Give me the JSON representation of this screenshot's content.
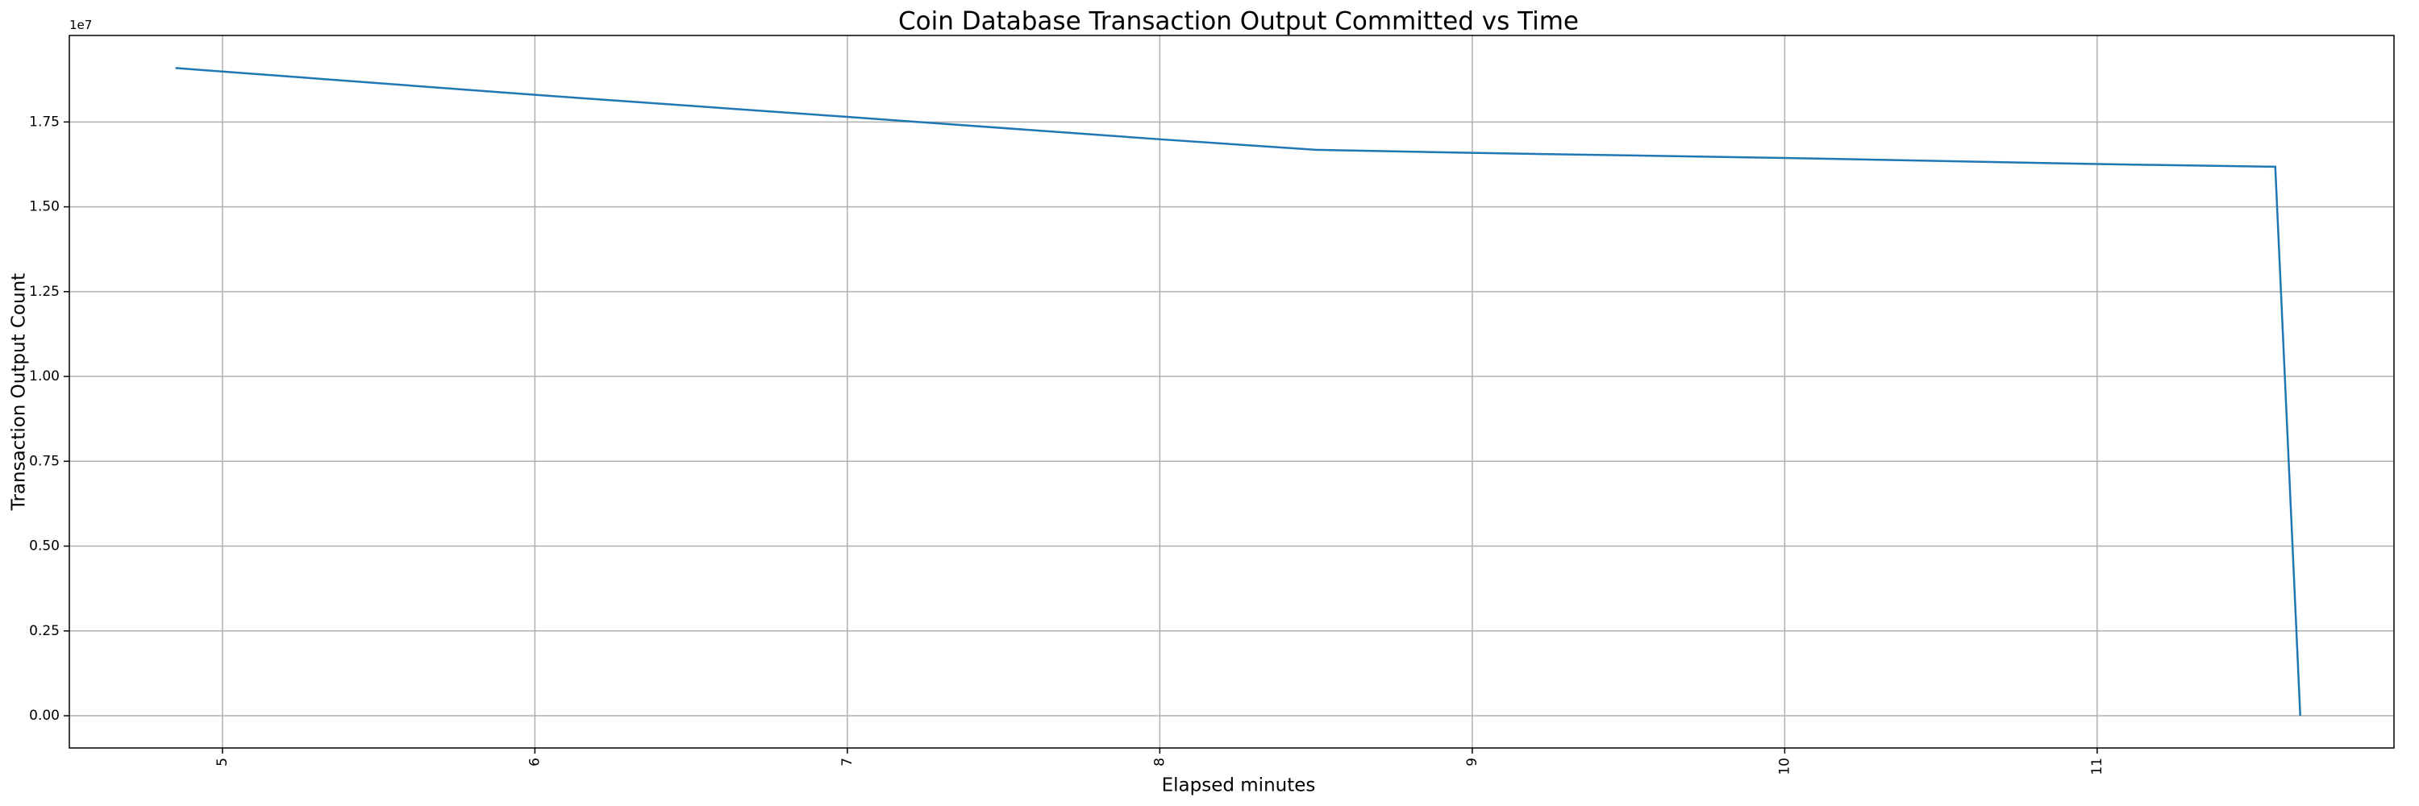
{
  "chart_data": {
    "type": "line",
    "title": "Coin Database Transaction Output Committed vs Time",
    "xlabel": "Elapsed minutes",
    "ylabel": "Transaction Output Count",
    "y_offset_label": "1e7",
    "x": [
      4.85,
      6,
      7,
      8,
      8.5,
      9,
      10,
      11,
      11.57,
      11.65
    ],
    "series": [
      {
        "color": "#1f77b4",
        "values": [
          19090000,
          18300000,
          17650000,
          16990000,
          16680000,
          16590000,
          16440000,
          16260000,
          16180000,
          0
        ]
      }
    ],
    "xlim": [
      4.51,
      11.95
    ],
    "ylim": [
      -950000,
      20050000
    ],
    "xticks": [
      5,
      6,
      7,
      8,
      9,
      10,
      11
    ],
    "yticks": [
      {
        "value": 0,
        "label": "0.00"
      },
      {
        "value": 2500000,
        "label": "0.25"
      },
      {
        "value": 5000000,
        "label": "0.50"
      },
      {
        "value": 7500000,
        "label": "0.75"
      },
      {
        "value": 10000000,
        "label": "1.00"
      },
      {
        "value": 12500000,
        "label": "1.25"
      },
      {
        "value": 15000000,
        "label": "1.50"
      },
      {
        "value": 17500000,
        "label": "1.75"
      }
    ],
    "grid": true
  }
}
